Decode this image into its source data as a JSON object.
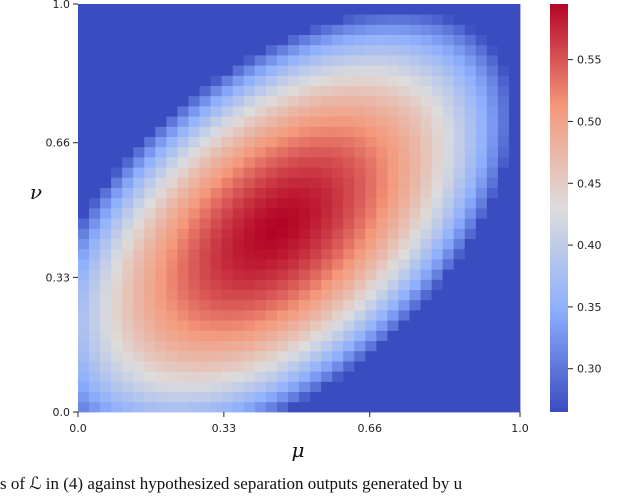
{
  "chart_data": {
    "type": "heatmap",
    "title": "",
    "xlabel": "μ",
    "ylabel": "ν",
    "x_range": [
      0.0,
      1.0
    ],
    "y_range": [
      0.0,
      1.0
    ],
    "xticks": [
      "0.0",
      "0.33",
      "0.66",
      "1.0"
    ],
    "yticks": [
      "0.0",
      "0.33",
      "0.66",
      "1.0"
    ],
    "xtick_values": [
      0.0,
      0.33,
      0.66,
      1.0
    ],
    "ytick_values": [
      0.0,
      0.33,
      0.66,
      1.0
    ],
    "grid_cells": 40,
    "value_range": [
      0.265,
      0.595
    ],
    "colormap": "coolwarm",
    "colors": {
      "low": "#3b4cc0",
      "mid": "#dddcdc",
      "high": "#b40426"
    },
    "colorbar_ticks": [
      "0.30",
      "0.35",
      "0.40",
      "0.45",
      "0.50",
      "0.55"
    ],
    "colorbar_values": [
      0.3,
      0.35,
      0.4,
      0.45,
      0.5,
      0.55
    ],
    "peak": {
      "mu": 0.45,
      "nu": 0.45,
      "value": 0.595
    },
    "grid": false
  },
  "caption": "s of ℒ  in (4) against hypothesized separation outputs generated by u"
}
